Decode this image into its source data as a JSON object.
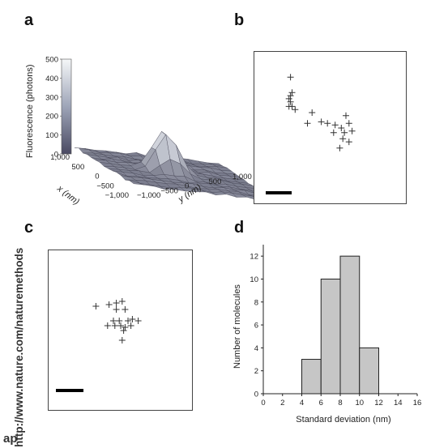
{
  "side_text": "http://www.nature.com/naturemethods",
  "side_fragment": "ap",
  "panels": {
    "a": {
      "letter": "a"
    },
    "b": {
      "letter": "b"
    },
    "c": {
      "letter": "c"
    },
    "d": {
      "letter": "d"
    }
  },
  "chart_data": [
    {
      "type": "surface",
      "panel": "a",
      "zlabel": "Fluorescence (photons)",
      "xlabel": "x (nm)",
      "ylabel": "y (nm)",
      "colorbar_ticks": [
        "0",
        "100",
        "200",
        "300",
        "400",
        "500"
      ],
      "x_ticks": [
        "1,000",
        "500",
        "0",
        "−500",
        "−1,000"
      ],
      "y_ticks": [
        "−1,000",
        "−500",
        "0",
        "500",
        "1,000"
      ],
      "zlim": [
        0,
        500
      ],
      "peak_value": 480,
      "surface_color": "#8f93a6"
    },
    {
      "type": "scatter",
      "panel": "b",
      "marker": "+",
      "has_scale_bar": true,
      "points": [
        [
          0.24,
          0.17
        ],
        [
          0.24,
          0.29
        ],
        [
          0.25,
          0.27
        ],
        [
          0.23,
          0.31
        ],
        [
          0.24,
          0.33
        ],
        [
          0.23,
          0.36
        ],
        [
          0.25,
          0.36
        ],
        [
          0.27,
          0.38
        ],
        [
          0.38,
          0.4
        ],
        [
          0.35,
          0.47
        ],
        [
          0.44,
          0.46
        ],
        [
          0.48,
          0.47
        ],
        [
          0.53,
          0.48
        ],
        [
          0.6,
          0.42
        ],
        [
          0.62,
          0.47
        ],
        [
          0.57,
          0.5
        ],
        [
          0.52,
          0.53
        ],
        [
          0.59,
          0.53
        ],
        [
          0.64,
          0.52
        ],
        [
          0.58,
          0.57
        ],
        [
          0.62,
          0.59
        ],
        [
          0.56,
          0.63
        ]
      ]
    },
    {
      "type": "scatter",
      "panel": "c",
      "marker": "+",
      "has_scale_bar": true,
      "points": [
        [
          0.33,
          0.35
        ],
        [
          0.42,
          0.34
        ],
        [
          0.47,
          0.33
        ],
        [
          0.51,
          0.32
        ],
        [
          0.47,
          0.37
        ],
        [
          0.53,
          0.37
        ],
        [
          0.45,
          0.44
        ],
        [
          0.49,
          0.44
        ],
        [
          0.55,
          0.44
        ],
        [
          0.58,
          0.43
        ],
        [
          0.62,
          0.44
        ],
        [
          0.41,
          0.47
        ],
        [
          0.46,
          0.47
        ],
        [
          0.5,
          0.47
        ],
        [
          0.53,
          0.48
        ],
        [
          0.52,
          0.5
        ],
        [
          0.57,
          0.47
        ],
        [
          0.51,
          0.56
        ]
      ]
    },
    {
      "type": "bar",
      "panel": "d",
      "xlabel": "Standard deviation (nm)",
      "ylabel": "Number of molecules",
      "xlim": [
        0,
        16
      ],
      "ylim": [
        0,
        13
      ],
      "x_ticks": [
        0,
        2,
        4,
        6,
        8,
        10,
        12,
        14,
        16
      ],
      "y_ticks": [
        0,
        2,
        4,
        6,
        8,
        10,
        12
      ],
      "bins": [
        {
          "x0": 4,
          "x1": 6,
          "value": 3
        },
        {
          "x0": 6,
          "x1": 8,
          "value": 10
        },
        {
          "x0": 8,
          "x1": 10,
          "value": 12
        },
        {
          "x0": 10,
          "x1": 12,
          "value": 4
        }
      ],
      "bar_color": "#c6c6c6"
    }
  ]
}
